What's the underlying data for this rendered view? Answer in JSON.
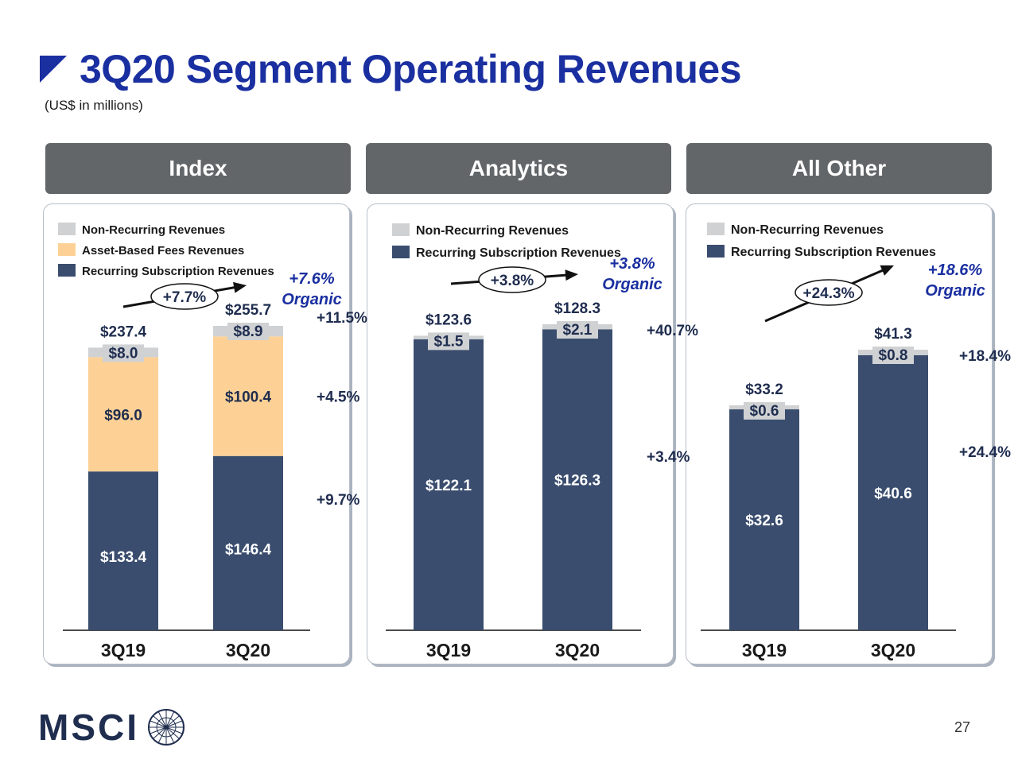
{
  "page": {
    "title": "3Q20 Segment Operating Revenues",
    "subtitle": "(US$ in millions)",
    "page_number": "27",
    "logo_text": "MSCI"
  },
  "colors": {
    "title": "#1a2fa0",
    "header_bg": "#626669",
    "recurring": "#3a4d6e",
    "asset_based": "#fdd196",
    "non_recurring": "#cfd1d3",
    "organic_text": "#1a2fa0"
  },
  "chart_data": [
    {
      "type": "bar",
      "stacked": true,
      "panel_title": "Index",
      "categories": [
        "3Q19",
        "3Q20"
      ],
      "ylim": [
        0,
        300
      ],
      "legend": [
        "Non-Recurring Revenues",
        "Asset-Based Fees Revenues",
        "Recurring Subscription Revenues"
      ],
      "series": [
        {
          "name": "Recurring Subscription Revenues",
          "values": [
            133.4,
            146.4
          ],
          "labels": [
            "$133.4",
            "$146.4"
          ],
          "growth": "+9.7%",
          "color": "#3a4d6e"
        },
        {
          "name": "Asset-Based Fees Revenues",
          "values": [
            96.0,
            100.4
          ],
          "labels": [
            "$96.0",
            "$100.4"
          ],
          "growth": "+4.5%",
          "color": "#fdd196"
        },
        {
          "name": "Non-Recurring Revenues",
          "values": [
            8.0,
            8.9
          ],
          "labels": [
            "$8.0",
            "$8.9"
          ],
          "growth": "+11.5%",
          "color": "#cfd1d3"
        }
      ],
      "totals": [
        "$237.4",
        "$255.7"
      ],
      "total_growth": "+7.7%",
      "organic_growth": "+7.6%",
      "organic_label": "Organic"
    },
    {
      "type": "bar",
      "stacked": true,
      "panel_title": "Analytics",
      "categories": [
        "3Q19",
        "3Q20"
      ],
      "ylim": [
        0,
        150
      ],
      "legend": [
        "Non-Recurring Revenues",
        "Recurring Subscription Revenues"
      ],
      "series": [
        {
          "name": "Recurring Subscription Revenues",
          "values": [
            122.1,
            126.3
          ],
          "labels": [
            "$122.1",
            "$126.3"
          ],
          "growth": "+3.4%",
          "color": "#3a4d6e"
        },
        {
          "name": "Non-Recurring Revenues",
          "values": [
            1.5,
            2.1
          ],
          "labels": [
            "$1.5",
            "$2.1"
          ],
          "growth": "+40.7%",
          "color": "#cfd1d3"
        }
      ],
      "totals": [
        "$123.6",
        "$128.3"
      ],
      "total_growth": "+3.8%",
      "organic_growth": "+3.8%",
      "organic_label": "Organic"
    },
    {
      "type": "bar",
      "stacked": true,
      "panel_title": "All Other",
      "categories": [
        "3Q19",
        "3Q20"
      ],
      "ylim": [
        0,
        50
      ],
      "legend": [
        "Non-Recurring Revenues",
        "Recurring Subscription Revenues"
      ],
      "series": [
        {
          "name": "Recurring Subscription Revenues",
          "values": [
            32.6,
            40.6
          ],
          "labels": [
            "$32.6",
            "$40.6"
          ],
          "growth": "+24.4%",
          "color": "#3a4d6e"
        },
        {
          "name": "Non-Recurring Revenues",
          "values": [
            0.6,
            0.8
          ],
          "labels": [
            "$0.6",
            "$0.8"
          ],
          "growth": "+18.4%",
          "color": "#cfd1d3"
        }
      ],
      "totals": [
        "$33.2",
        "$41.3"
      ],
      "total_growth": "+24.3%",
      "organic_growth": "+18.6%",
      "organic_label": "Organic"
    }
  ]
}
